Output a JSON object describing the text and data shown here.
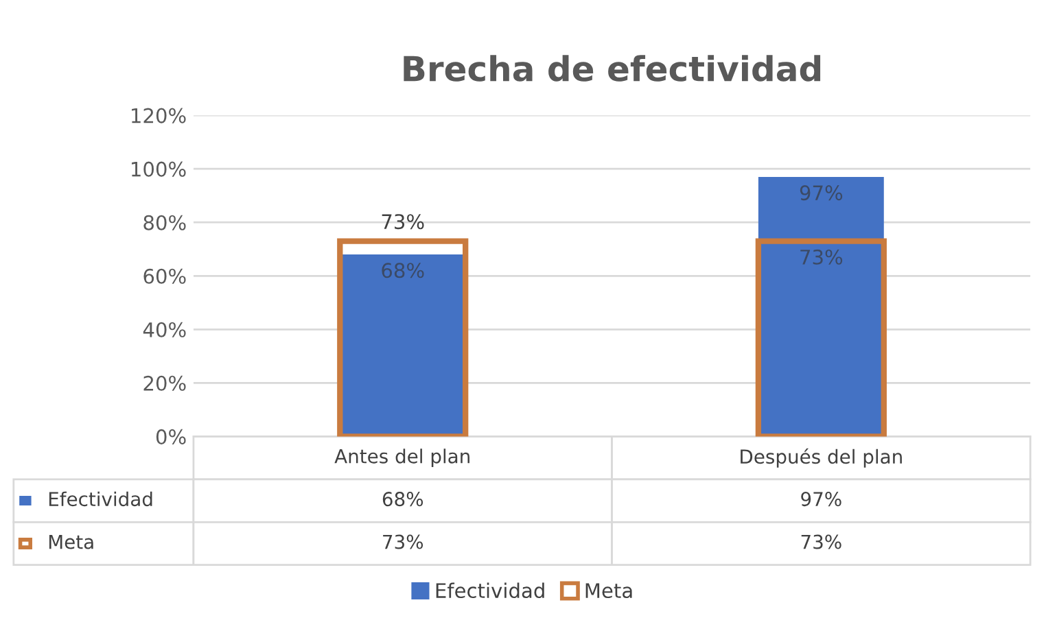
{
  "chart_data": {
    "type": "bar",
    "title": "Brecha de efectividad",
    "categories": [
      "Antes del plan",
      "Después del plan"
    ],
    "series": [
      {
        "name": "Efectividad",
        "color": "#4472c4",
        "values": [
          68,
          97
        ],
        "value_labels": [
          "68%",
          "97%"
        ]
      },
      {
        "name": "Meta",
        "color": "#c97b3f",
        "values": [
          73,
          73
        ],
        "value_labels": [
          "73%",
          "73%"
        ]
      }
    ],
    "ylim": [
      0,
      120
    ],
    "yticks": [
      {
        "value": 0,
        "label": "0%"
      },
      {
        "value": 20,
        "label": "20%"
      },
      {
        "value": 40,
        "label": "40%"
      },
      {
        "value": 60,
        "label": "60%"
      },
      {
        "value": 80,
        "label": "80%"
      },
      {
        "value": 100,
        "label": "100%"
      },
      {
        "value": 120,
        "label": "120%"
      }
    ],
    "grid": "y",
    "legend": "bottom"
  }
}
